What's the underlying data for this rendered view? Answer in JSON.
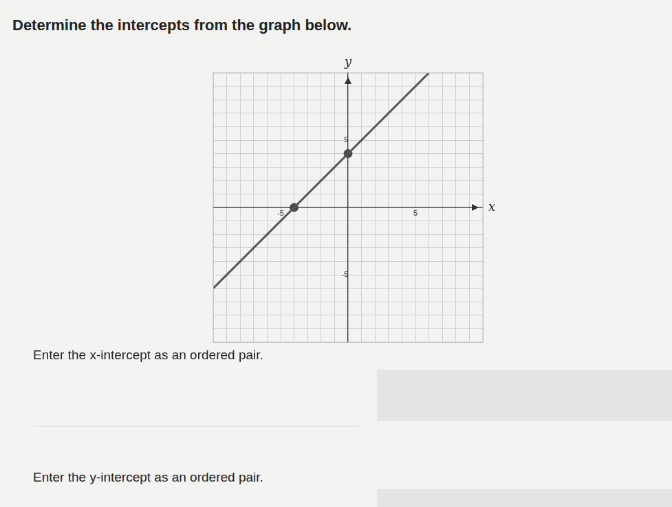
{
  "page": {
    "heading": "Determine the intercepts from the graph below.",
    "prompts": [
      "Enter the x-intercept as an ordered pair.",
      "Enter the y-intercept as an ordered pair."
    ]
  },
  "chart_data": {
    "type": "line",
    "x_label": "x",
    "y_label": "y",
    "x": [
      -10,
      6
    ],
    "values": [
      -6,
      10
    ],
    "color": "#555555",
    "points": {
      "x": [
        -4,
        0
      ],
      "values": [
        0,
        4
      ],
      "color": "#4a4a4a",
      "marker": "circle"
    },
    "xlim": [
      -10,
      10
    ],
    "ylim": [
      -10,
      10
    ],
    "xticks": [
      -5,
      5
    ],
    "yticks": [
      -5,
      5
    ],
    "grid": true
  }
}
